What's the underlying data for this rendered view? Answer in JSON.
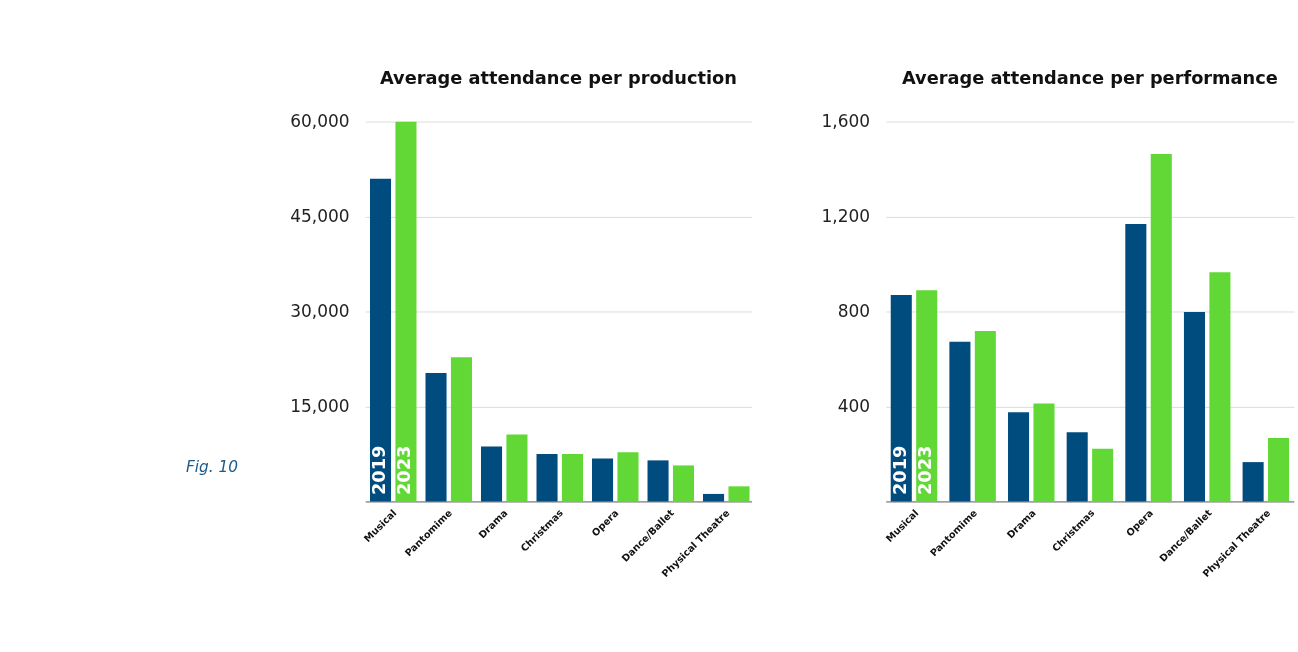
{
  "chart_data": [
    {
      "type": "bar",
      "title": "Average attendance per production",
      "categories": [
        "Musical",
        "Pantomime",
        "Drama",
        "Christmas",
        "Opera",
        "Dance/Ballet",
        "Physical Theatre"
      ],
      "series": [
        {
          "name": "2019",
          "color": "#004c7f",
          "values": [
            51000,
            20300,
            8700,
            7500,
            6800,
            6500,
            1200
          ]
        },
        {
          "name": "2023",
          "color": "#62d836",
          "values": [
            60000,
            22800,
            10600,
            7500,
            7800,
            5700,
            2400
          ]
        }
      ],
      "ylim": [
        0,
        60000
      ],
      "yticks": [
        {
          "value": 15000,
          "label": "15,000"
        },
        {
          "value": 30000,
          "label": "30,000"
        },
        {
          "value": 45000,
          "label": "45,000"
        },
        {
          "value": 60000,
          "label": "60,000"
        }
      ],
      "grid": "y",
      "annotations": [
        "Fig. 10"
      ]
    },
    {
      "type": "bar",
      "title": "Average attendance per performance",
      "categories": [
        "Musical",
        "Pantomime",
        "Drama",
        "Christmas",
        "Opera",
        "Dance/Ballet",
        "Physical Theatre"
      ],
      "series": [
        {
          "name": "2019",
          "color": "#004c7f",
          "values": [
            870,
            673,
            376,
            292,
            1169,
            798,
            166
          ]
        },
        {
          "name": "2023",
          "color": "#62d836",
          "values": [
            890,
            718,
            413,
            222,
            1464,
            966,
            268
          ]
        }
      ],
      "ylim": [
        0,
        1600
      ],
      "yticks": [
        {
          "value": 400,
          "label": "400"
        },
        {
          "value": 800,
          "label": "800"
        },
        {
          "value": 1200,
          "label": "1,200"
        },
        {
          "value": 1600,
          "label": "1,600"
        }
      ],
      "grid": "y"
    }
  ]
}
